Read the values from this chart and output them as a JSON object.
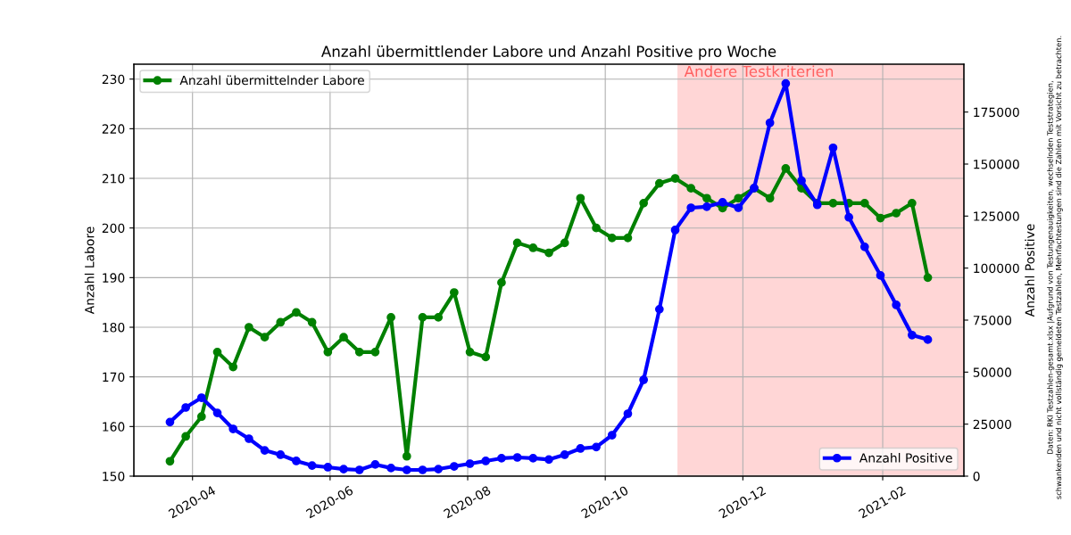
{
  "chart_data": {
    "type": "line",
    "title": "Anzahl übermittlender Labore und Anzahl Positive pro Woche",
    "ylabel": "Anzahl Labore",
    "y2label": "Anzahl Positive",
    "x": [
      "2020-03-22",
      "2020-03-29",
      "2020-04-05",
      "2020-04-12",
      "2020-04-19",
      "2020-04-26",
      "2020-05-03",
      "2020-05-10",
      "2020-05-17",
      "2020-05-24",
      "2020-05-31",
      "2020-06-07",
      "2020-06-14",
      "2020-06-21",
      "2020-06-28",
      "2020-07-05",
      "2020-07-12",
      "2020-07-19",
      "2020-07-26",
      "2020-08-02",
      "2020-08-09",
      "2020-08-16",
      "2020-08-23",
      "2020-08-30",
      "2020-09-06",
      "2020-09-13",
      "2020-09-20",
      "2020-09-27",
      "2020-10-04",
      "2020-10-11",
      "2020-10-18",
      "2020-10-25",
      "2020-11-01",
      "2020-11-08",
      "2020-11-15",
      "2020-11-22",
      "2020-11-29",
      "2020-12-06",
      "2020-12-13",
      "2020-12-20",
      "2020-12-27",
      "2021-01-03",
      "2021-01-10",
      "2021-01-17",
      "2021-01-24",
      "2021-01-31",
      "2021-02-07",
      "2021-02-14",
      "2021-02-21"
    ],
    "series": [
      {
        "name": "Anzahl übermittelnder Labore",
        "color": "#008000",
        "values": [
          153,
          158,
          162,
          175,
          172,
          180,
          178,
          181,
          183,
          181,
          175,
          178,
          175,
          175,
          182,
          154,
          182,
          182,
          187,
          175,
          174,
          189,
          197,
          196,
          195,
          197,
          206,
          200,
          198,
          198,
          205,
          209,
          210,
          208,
          206,
          204,
          206,
          208,
          206,
          212,
          208,
          205,
          205,
          205,
          205,
          202,
          203,
          205,
          190
        ]
      },
      {
        "name": "Anzahl Positive",
        "color": "#0000ff",
        "axis": "y2",
        "values": [
          26000,
          33000,
          37700,
          30400,
          22700,
          18000,
          12400,
          10300,
          7300,
          5100,
          4300,
          3400,
          3000,
          5600,
          3900,
          3000,
          3000,
          3400,
          4700,
          6000,
          7300,
          8600,
          9000,
          8600,
          8000,
          10300,
          13300,
          14000,
          19700,
          30000,
          46300,
          80200,
          118300,
          129000,
          129500,
          131600,
          129000,
          138500,
          169800,
          188700,
          142000,
          130400,
          157800,
          124400,
          110200,
          96500,
          82300,
          67800,
          65600
        ]
      }
    ],
    "xlim": [
      "2020-03-06",
      "2021-03-09"
    ],
    "xticks": [
      {
        "value": "2020-04-01",
        "label": "2020-04"
      },
      {
        "value": "2020-06-01",
        "label": "2020-06"
      },
      {
        "value": "2020-08-01",
        "label": "2020-08"
      },
      {
        "value": "2020-10-01",
        "label": "2020-10"
      },
      {
        "value": "2020-12-01",
        "label": "2020-12"
      },
      {
        "value": "2021-02-01",
        "label": "2021-02"
      }
    ],
    "ylim": [
      150,
      233
    ],
    "yticks": [
      150,
      160,
      170,
      180,
      190,
      200,
      210,
      220,
      230
    ],
    "y2lim": [
      0,
      198000
    ],
    "y2ticks": [
      0,
      25000,
      50000,
      75000,
      100000,
      125000,
      150000,
      175000
    ],
    "bands": [
      {
        "axis": "x",
        "from": "2020-11-02",
        "to": "2021-03-09",
        "label": "Andere Testkriterien",
        "color": "#ffd6d6"
      }
    ],
    "legend": "top left",
    "marker": "circle",
    "line_style": "solid",
    "grid": true,
    "annotations": [
      "Daten: RKI Testzahlen-gesamt.xlsx |Aufgrund von Testungenauigkeiten, wechselnden Teststrategien,\nschwankenden und nicht vollständig gemeldeten Testzahlen, Mehrfachtestungen sind die Zahlen mit Vorsicht zu betrachten."
    ]
  }
}
